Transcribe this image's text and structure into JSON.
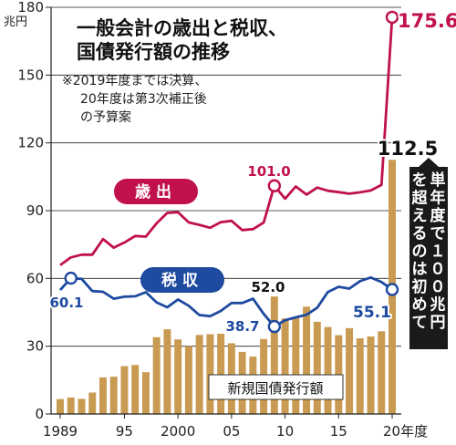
{
  "chart_data": {
    "type": "bar+line",
    "title": "一般会計の歳出と税収、国債発行額の推移",
    "note_lines": [
      "※2019年度までは決算、",
      "20年度は第3次補正後",
      "の予算案"
    ],
    "y_unit": "兆円",
    "ylim": [
      0,
      180
    ],
    "y_ticks": [
      {
        "value": 0,
        "label": "0"
      },
      {
        "value": 30,
        "label": "30"
      },
      {
        "value": 60,
        "label": "60"
      },
      {
        "value": 90,
        "label": "90"
      },
      {
        "value": 120,
        "label": "120"
      },
      {
        "value": 150,
        "label": "150"
      },
      {
        "value": 180,
        "label": "180"
      }
    ],
    "x": [
      1989,
      1990,
      1991,
      1992,
      1993,
      1994,
      1995,
      1996,
      1997,
      1998,
      1999,
      2000,
      2001,
      2002,
      2003,
      2004,
      2005,
      2006,
      2007,
      2008,
      2009,
      2010,
      2011,
      2012,
      2013,
      2014,
      2015,
      2016,
      2017,
      2018,
      2019,
      2020
    ],
    "x_ticks": [
      {
        "year": 1989,
        "label": "1989"
      },
      {
        "year": 1995,
        "label": "95"
      },
      {
        "year": 2000,
        "label": "2000"
      },
      {
        "year": 2005,
        "label": "05"
      },
      {
        "year": 2010,
        "label": "10"
      },
      {
        "year": 2015,
        "label": "15"
      },
      {
        "year": 2020,
        "label": "20年度"
      }
    ],
    "series": [
      {
        "name": "新規国債発行額",
        "type": "bar",
        "color": "#c99b52",
        "values": [
          6.6,
          7.3,
          6.7,
          9.5,
          16.2,
          16.5,
          21.2,
          21.7,
          18.5,
          34.0,
          37.5,
          33.0,
          30.0,
          35.0,
          35.3,
          35.5,
          31.3,
          27.5,
          25.4,
          33.2,
          52.0,
          42.3,
          42.8,
          47.5,
          40.8,
          38.5,
          34.9,
          38.0,
          33.5,
          34.3,
          36.6,
          112.5
        ]
      },
      {
        "name": "歳出",
        "type": "line",
        "color": "#c0104e",
        "values": [
          65.9,
          69.3,
          70.5,
          70.5,
          77.4,
          73.6,
          75.9,
          78.8,
          78.5,
          84.4,
          89.0,
          89.3,
          84.8,
          83.7,
          82.4,
          84.9,
          85.5,
          81.4,
          81.8,
          84.7,
          101.0,
          95.3,
          100.7,
          97.1,
          100.2,
          98.8,
          98.2,
          97.5,
          98.1,
          98.9,
          101.4,
          175.6
        ]
      },
      {
        "name": "税収",
        "type": "line",
        "color": "#1e4aa0",
        "values": [
          54.9,
          60.1,
          59.8,
          54.4,
          54.1,
          51.0,
          51.9,
          52.1,
          53.9,
          49.4,
          47.2,
          50.7,
          47.9,
          43.8,
          43.3,
          45.6,
          49.1,
          49.1,
          51.0,
          44.3,
          38.7,
          41.5,
          42.8,
          43.9,
          47.0,
          54.0,
          56.3,
          55.5,
          58.8,
          60.4,
          58.4,
          55.1
        ]
      }
    ],
    "annotations": {
      "spend_max": "175.6",
      "bond_2020": "112.5",
      "spend_2009": "101.0",
      "bond_2009": "52.0",
      "tax_2009": "38.7",
      "tax_1990": "60.1",
      "tax_2020": "55.1",
      "first_over_100": "単年度で１００兆円を超えるのは初めて"
    }
  }
}
